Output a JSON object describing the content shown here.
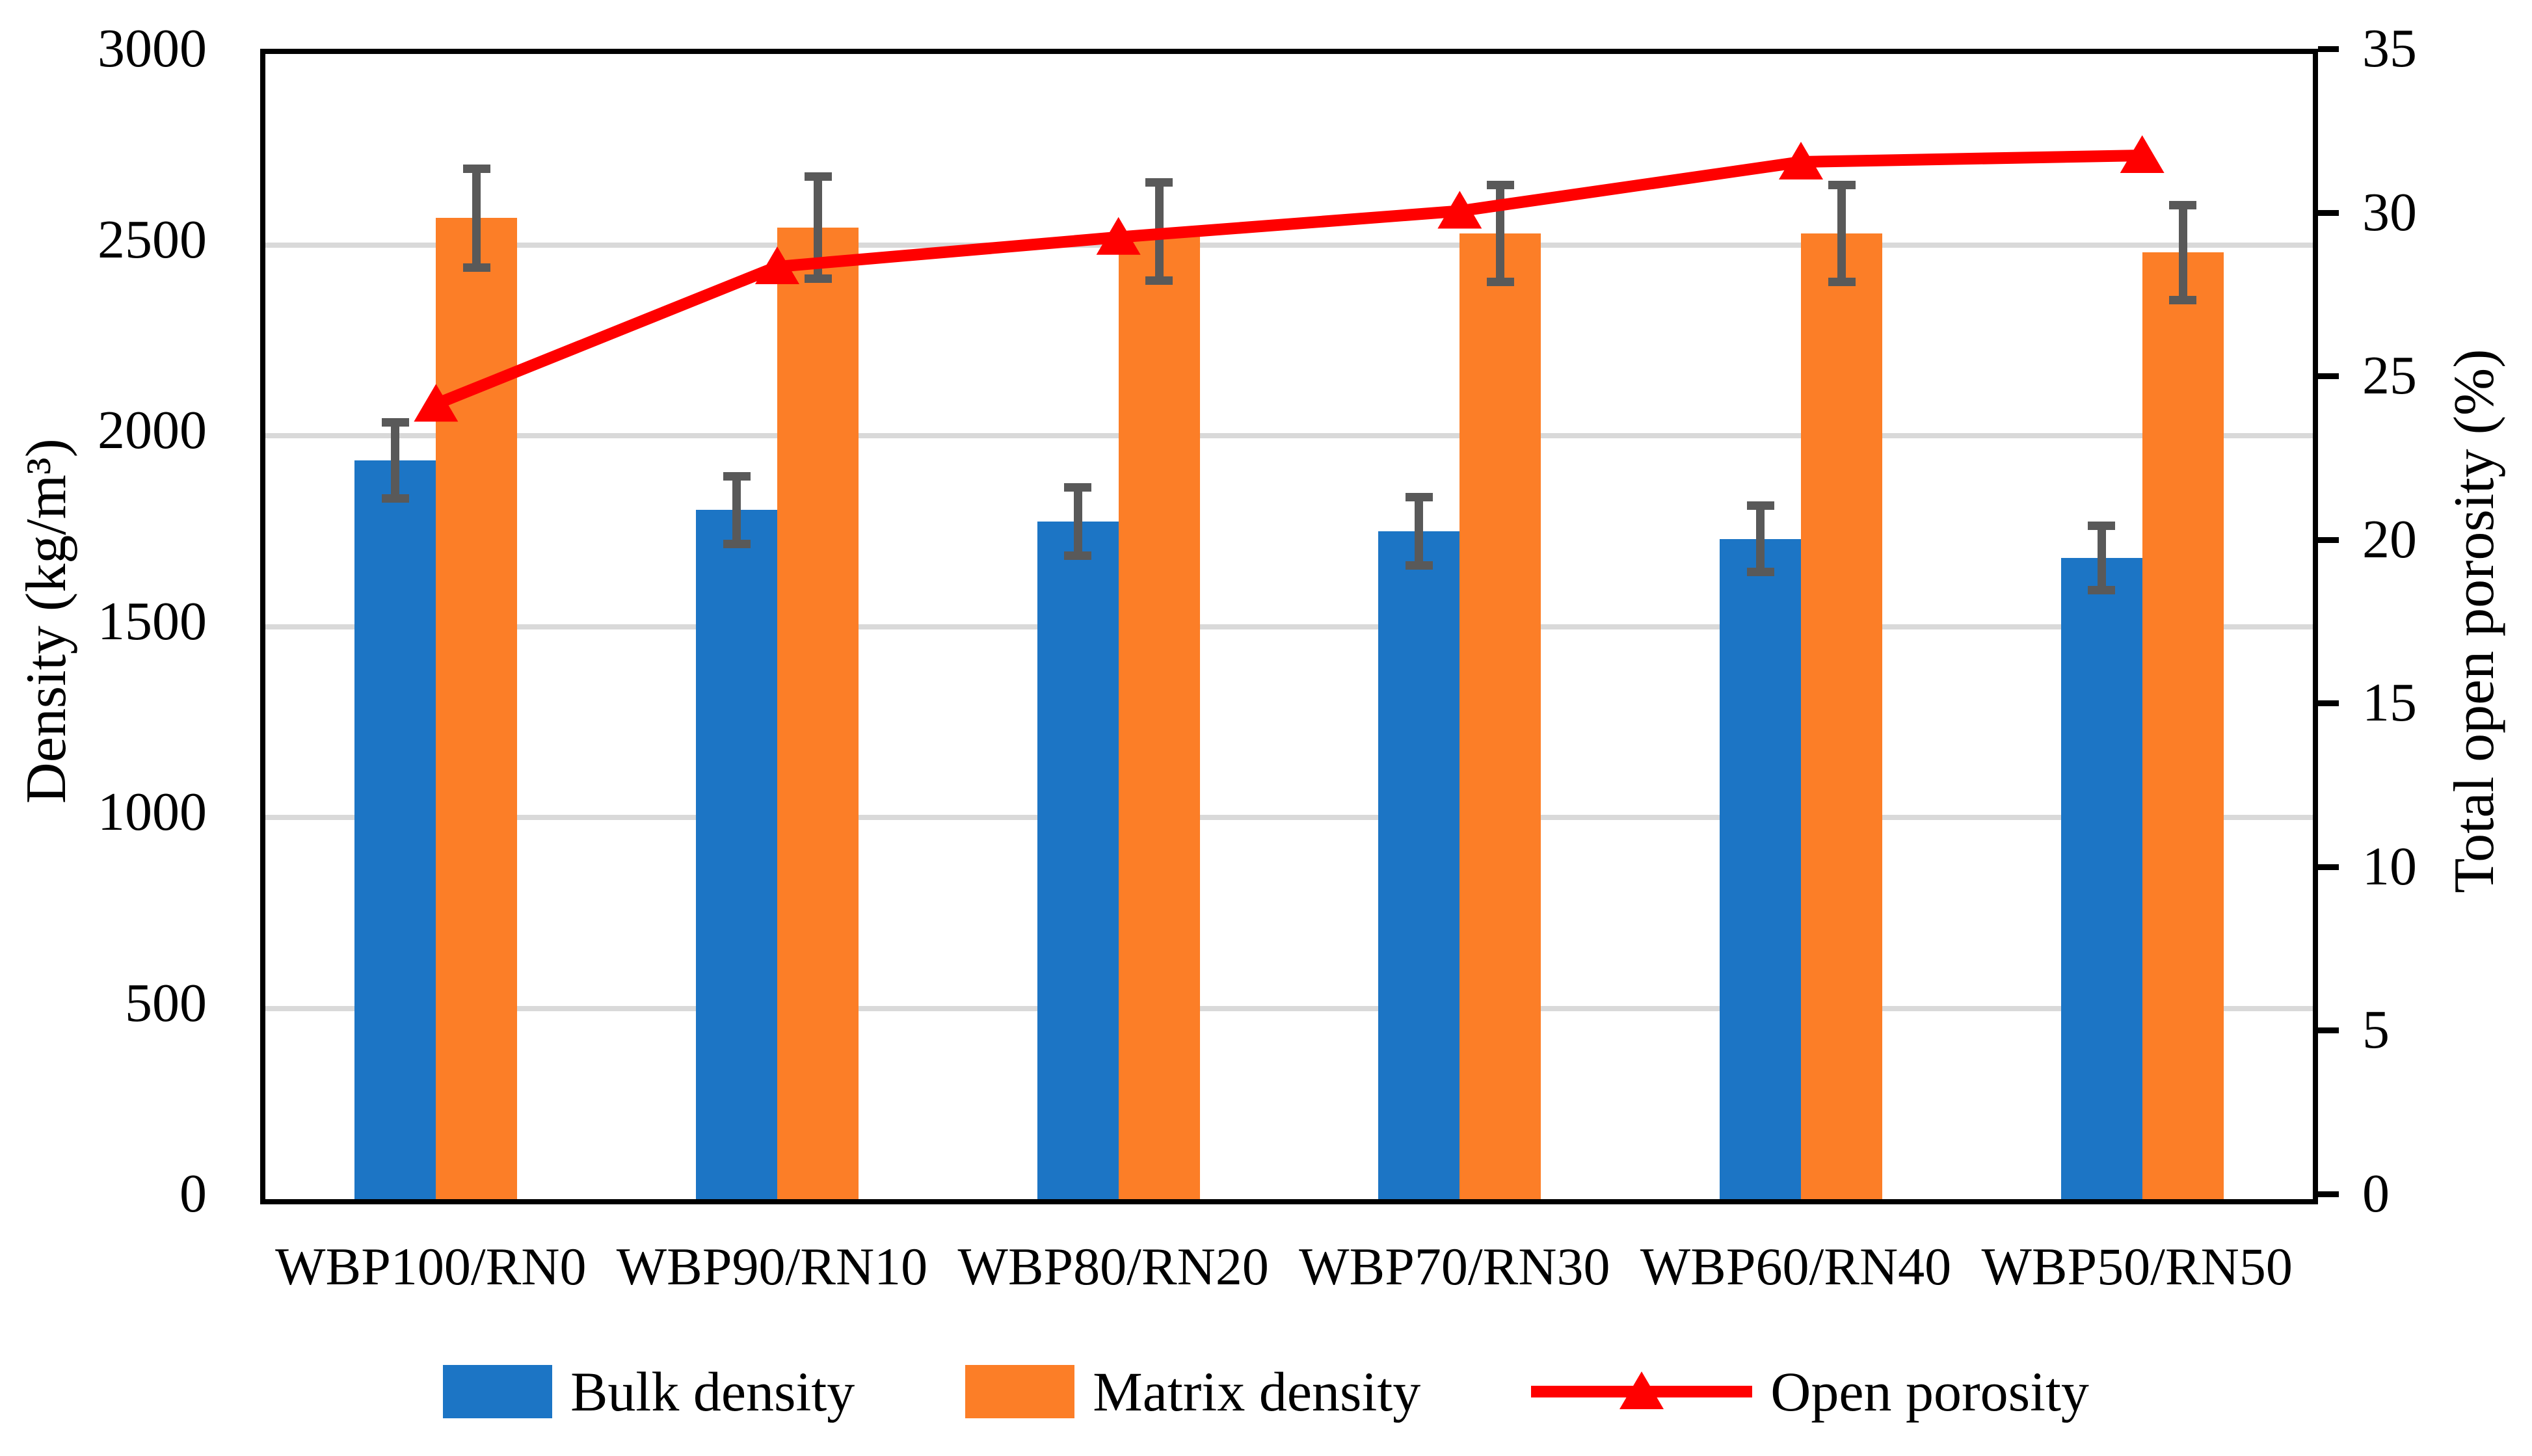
{
  "chart_data": {
    "type": "bar",
    "subtype": "dual-axis combo: grouped bars + line with triangle markers",
    "categories": [
      "WBP100/RN0",
      "WBP90/RN10",
      "WBP80/RN20",
      "WBP70/RN30",
      "WBP60/RN40",
      "WBP50/RN50"
    ],
    "series": [
      {
        "name": "Bulk density",
        "type": "bar",
        "axis": "left",
        "color": "#1C75C5",
        "values": [
          1935,
          1805,
          1775,
          1750,
          1730,
          1680
        ],
        "errors": [
          100,
          90,
          90,
          90,
          88,
          85
        ]
      },
      {
        "name": "Matrix density",
        "type": "bar",
        "axis": "left",
        "color": "#FC7E27",
        "values": [
          2570,
          2545,
          2535,
          2530,
          2530,
          2480
        ],
        "errors": [
          130,
          135,
          130,
          128,
          128,
          125
        ]
      },
      {
        "name": "Open porosity",
        "type": "line",
        "axis": "right",
        "color": "#FF0000",
        "marker": "triangle-up",
        "values": [
          24.3,
          28.5,
          29.4,
          30.2,
          31.7,
          31.9
        ]
      }
    ],
    "left_axis": {
      "title": "Density (kg/m³)",
      "min": 0,
      "max": 3000,
      "tick_step": 500,
      "ticks": [
        0,
        500,
        1000,
        1500,
        2000,
        2500,
        3000
      ]
    },
    "right_axis": {
      "title": "Total open porosity (%)",
      "min": 0,
      "max": 35,
      "tick_step": 5,
      "ticks": [
        0,
        5,
        10,
        15,
        20,
        25,
        30,
        35
      ]
    },
    "grid": {
      "horizontal": true,
      "vertical": false,
      "color": "#D9D9D9"
    },
    "error_bar_color": "#595959",
    "axis_line_color": "#000000",
    "legend_position": "bottom",
    "legend": [
      "Bulk density",
      "Matrix density",
      "Open porosity"
    ]
  }
}
